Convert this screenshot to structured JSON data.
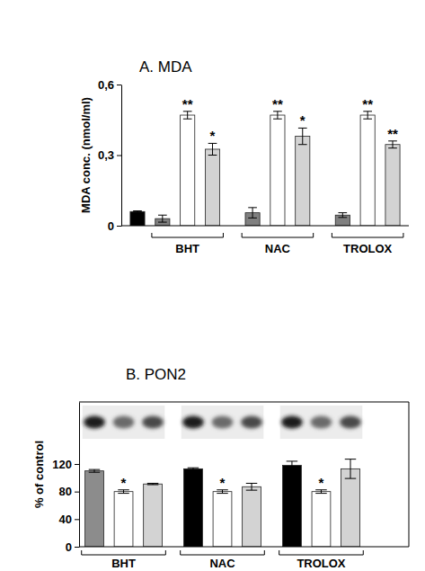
{
  "chart_data": [
    {
      "type": "bar",
      "title": "A. MDA",
      "y_label": "MDA conc. (nmol/ml)",
      "categories": [
        null,
        "BHT",
        "NAC",
        "TROLOX"
      ],
      "series": [
        {
          "color": "#000000",
          "values": [
            0.06,
            null,
            null,
            null
          ],
          "errors": [
            0.003,
            null,
            null,
            null
          ]
        },
        {
          "color": "#808080",
          "values": [
            null,
            0.03,
            0.055,
            0.045
          ],
          "errors": [
            null,
            0.015,
            0.022,
            0.01
          ]
        },
        {
          "color": "#ffffff",
          "values": [
            null,
            0.47,
            0.47,
            0.47
          ],
          "errors": [
            null,
            0.016,
            0.016,
            0.016
          ],
          "significance": [
            null,
            "**",
            "**",
            "**"
          ]
        },
        {
          "color": "#d3d3d3",
          "values": [
            null,
            0.325,
            0.38,
            0.345
          ],
          "errors": [
            null,
            0.025,
            0.035,
            0.015
          ],
          "significance": [
            null,
            "*",
            "*",
            "**"
          ]
        }
      ],
      "ylim": [
        0,
        0.6
      ],
      "yticks": [
        0,
        {
          "value": 0.3,
          "label": "0,3"
        },
        {
          "value": 0.6,
          "label": "0,6"
        }
      ]
    },
    {
      "type": "bar",
      "title": "B. PON2",
      "y_label": "% of control",
      "categories": [
        "BHT",
        "NAC",
        "TROLOX"
      ],
      "series": [
        {
          "colors": [
            "#8c8c8c",
            "#000000",
            "#000000"
          ],
          "values": [
            110,
            113,
            118
          ],
          "errors": [
            2,
            1.5,
            6
          ]
        },
        {
          "color": "#ffffff",
          "values": [
            80,
            80,
            80
          ],
          "errors": [
            2.5,
            2.5,
            2.5
          ],
          "significance": [
            "*",
            "*",
            "*"
          ]
        },
        {
          "color": "#d3d3d3",
          "values": [
            91,
            87,
            113
          ],
          "errors": [
            1,
            5,
            14
          ]
        }
      ],
      "ylim": [
        0,
        210
      ],
      "yticks": [
        0,
        40,
        80,
        120
      ]
    }
  ]
}
